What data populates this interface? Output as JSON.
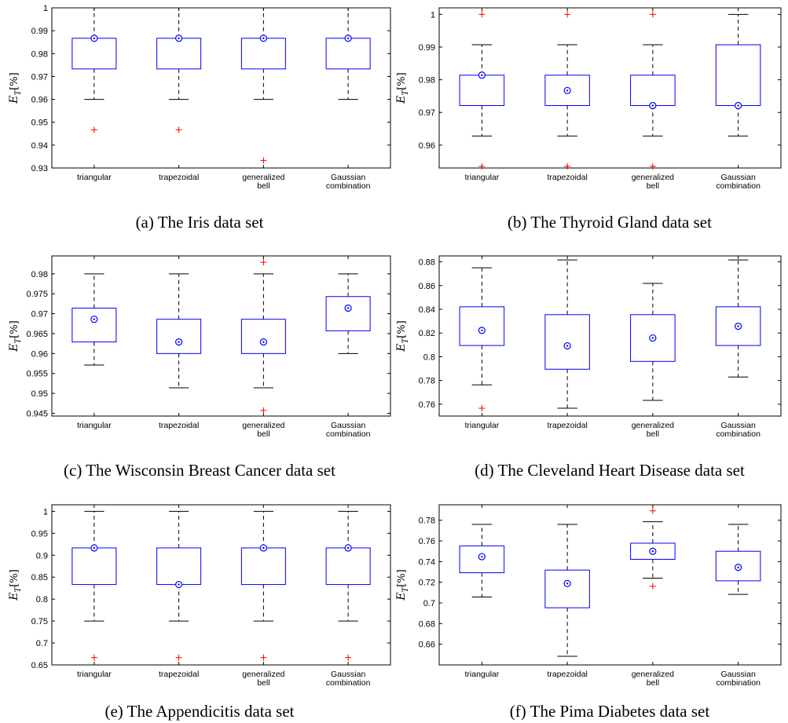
{
  "colors": {
    "box": "#0000ff",
    "median": "#0000ff",
    "outlier": "#ff0000",
    "whisker": "#000000",
    "axis": "#000000"
  },
  "y_label": {
    "main": "E",
    "sub": "T",
    "unit": "[%]"
  },
  "chart_data": [
    {
      "type": "box",
      "caption": "(a) The Iris data set",
      "categories": [
        [
          "triangular"
        ],
        [
          "trapezoidal"
        ],
        [
          "generalized",
          "bell"
        ],
        [
          "Gaussian",
          "combination"
        ]
      ],
      "ylim": [
        0.93,
        1.0
      ],
      "yticks": [
        0.93,
        0.94,
        0.95,
        0.96,
        0.97,
        0.98,
        0.99,
        1
      ],
      "ytick_labels": [
        "0.93",
        "0.94",
        "0.95",
        "0.96",
        "0.97",
        "0.98",
        "0.99",
        "1"
      ],
      "boxes": [
        {
          "q1": 0.9733,
          "median": 0.9867,
          "q3": 0.9867,
          "whisker_low": 0.96,
          "whisker_high": 1.0,
          "outliers": [
            0.9467
          ]
        },
        {
          "q1": 0.9733,
          "median": 0.9867,
          "q3": 0.9867,
          "whisker_low": 0.96,
          "whisker_high": 1.0,
          "outliers": [
            0.9467
          ]
        },
        {
          "q1": 0.9733,
          "median": 0.9867,
          "q3": 0.9867,
          "whisker_low": 0.96,
          "whisker_high": 1.0,
          "outliers": [
            0.9333
          ]
        },
        {
          "q1": 0.9733,
          "median": 0.9867,
          "q3": 0.9867,
          "whisker_low": 0.96,
          "whisker_high": 1.0,
          "outliers": []
        }
      ]
    },
    {
      "type": "box",
      "caption": "(b) The Thyroid Gland data set",
      "categories": [
        [
          "triangular"
        ],
        [
          "trapezoidal"
        ],
        [
          "generalized",
          "bell"
        ],
        [
          "Gaussian",
          "combination"
        ]
      ],
      "ylim": [
        0.953,
        1.002
      ],
      "yticks": [
        0.96,
        0.97,
        0.98,
        0.99,
        1
      ],
      "ytick_labels": [
        "0.96",
        "0.97",
        "0.98",
        "0.99",
        "1"
      ],
      "boxes": [
        {
          "q1": 0.9721,
          "median": 0.9814,
          "q3": 0.9814,
          "whisker_low": 0.9628,
          "whisker_high": 0.9907,
          "outliers": [
            0.9535,
            1.0
          ]
        },
        {
          "q1": 0.9721,
          "median": 0.9767,
          "q3": 0.9814,
          "whisker_low": 0.9628,
          "whisker_high": 0.9907,
          "outliers": [
            0.9535,
            1.0
          ]
        },
        {
          "q1": 0.9721,
          "median": 0.9721,
          "q3": 0.9814,
          "whisker_low": 0.9628,
          "whisker_high": 0.9907,
          "outliers": [
            0.9535,
            1.0
          ]
        },
        {
          "q1": 0.9721,
          "median": 0.9721,
          "q3": 0.9907,
          "whisker_low": 0.9628,
          "whisker_high": 1.0,
          "outliers": []
        }
      ]
    },
    {
      "type": "box",
      "caption": "(c) The Wisconsin Breast Cancer data set",
      "categories": [
        [
          "triangular"
        ],
        [
          "trapezoidal"
        ],
        [
          "generalized",
          "bell"
        ],
        [
          "Gaussian",
          "combination"
        ]
      ],
      "ylim": [
        0.9443,
        0.9845
      ],
      "yticks": [
        0.945,
        0.95,
        0.955,
        0.96,
        0.965,
        0.97,
        0.975,
        0.98
      ],
      "ytick_labels": [
        "0.945",
        "0.95",
        "0.955",
        "0.96",
        "0.965",
        "0.97",
        "0.975",
        "0.98"
      ],
      "boxes": [
        {
          "q1": 0.9629,
          "median": 0.9686,
          "q3": 0.9714,
          "whisker_low": 0.9571,
          "whisker_high": 0.98,
          "outliers": []
        },
        {
          "q1": 0.96,
          "median": 0.9629,
          "q3": 0.9686,
          "whisker_low": 0.9514,
          "whisker_high": 0.98,
          "outliers": []
        },
        {
          "q1": 0.96,
          "median": 0.9629,
          "q3": 0.9686,
          "whisker_low": 0.9514,
          "whisker_high": 0.98,
          "outliers": [
            0.9457,
            0.9829
          ]
        },
        {
          "q1": 0.9657,
          "median": 0.9714,
          "q3": 0.9743,
          "whisker_low": 0.96,
          "whisker_high": 0.98,
          "outliers": []
        }
      ]
    },
    {
      "type": "box",
      "caption": "(d) The Cleveland Heart Disease data set",
      "categories": [
        [
          "triangular"
        ],
        [
          "trapezoidal"
        ],
        [
          "generalized",
          "bell"
        ],
        [
          "Gaussian",
          "combination"
        ]
      ],
      "ylim": [
        0.75,
        0.885
      ],
      "yticks": [
        0.76,
        0.78,
        0.8,
        0.82,
        0.84,
        0.86,
        0.88
      ],
      "ytick_labels": [
        "0.76",
        "0.78",
        "0.8",
        "0.82",
        "0.84",
        "0.86",
        "0.88"
      ],
      "boxes": [
        {
          "q1": 0.8095,
          "median": 0.8222,
          "q3": 0.8421,
          "whisker_low": 0.7763,
          "whisker_high": 0.875,
          "outliers": [
            0.7566
          ]
        },
        {
          "q1": 0.7895,
          "median": 0.8092,
          "q3": 0.8355,
          "whisker_low": 0.7566,
          "whisker_high": 0.8816,
          "outliers": []
        },
        {
          "q1": 0.7961,
          "median": 0.8158,
          "q3": 0.8355,
          "whisker_low": 0.7632,
          "whisker_high": 0.8618,
          "outliers": []
        },
        {
          "q1": 0.8095,
          "median": 0.8257,
          "q3": 0.8421,
          "whisker_low": 0.7829,
          "whisker_high": 0.8816,
          "outliers": []
        }
      ]
    },
    {
      "type": "box",
      "caption": "(e) The Appendicitis data set",
      "categories": [
        [
          "triangular"
        ],
        [
          "trapezoidal"
        ],
        [
          "generalized",
          "bell"
        ],
        [
          "Gaussian",
          "combination"
        ]
      ],
      "ylim": [
        0.65,
        1.015
      ],
      "yticks": [
        0.65,
        0.7,
        0.75,
        0.8,
        0.85,
        0.9,
        0.95,
        1
      ],
      "ytick_labels": [
        "0.65",
        "0.7",
        "0.75",
        "0.8",
        "0.85",
        "0.9",
        "0.95",
        "1"
      ],
      "boxes": [
        {
          "q1": 0.8333,
          "median": 0.9167,
          "q3": 0.9167,
          "whisker_low": 0.75,
          "whisker_high": 1.0,
          "outliers": [
            0.6667
          ]
        },
        {
          "q1": 0.8333,
          "median": 0.8333,
          "q3": 0.9167,
          "whisker_low": 0.75,
          "whisker_high": 1.0,
          "outliers": [
            0.6667
          ]
        },
        {
          "q1": 0.8333,
          "median": 0.9167,
          "q3": 0.9167,
          "whisker_low": 0.75,
          "whisker_high": 1.0,
          "outliers": [
            0.6667
          ]
        },
        {
          "q1": 0.8333,
          "median": 0.9167,
          "q3": 0.9167,
          "whisker_low": 0.75,
          "whisker_high": 1.0,
          "outliers": [
            0.6667
          ]
        }
      ]
    },
    {
      "type": "box",
      "caption": "(f) The Pima Diabetes data set",
      "categories": [
        [
          "triangular"
        ],
        [
          "trapezoidal"
        ],
        [
          "generalized",
          "bell"
        ],
        [
          "Gaussian",
          "combination"
        ]
      ],
      "ylim": [
        0.64,
        0.795
      ],
      "yticks": [
        0.66,
        0.68,
        0.7,
        0.72,
        0.74,
        0.76,
        0.78
      ],
      "ytick_labels": [
        "0.66",
        "0.68",
        "0.7",
        "0.72",
        "0.74",
        "0.76",
        "0.78"
      ],
      "boxes": [
        {
          "q1": 0.7292,
          "median": 0.7448,
          "q3": 0.7552,
          "whisker_low": 0.7057,
          "whisker_high": 0.776,
          "outliers": []
        },
        {
          "q1": 0.6953,
          "median": 0.7188,
          "q3": 0.7318,
          "whisker_low": 0.6484,
          "whisker_high": 0.776,
          "outliers": []
        },
        {
          "q1": 0.7422,
          "median": 0.75,
          "q3": 0.7578,
          "whisker_low": 0.724,
          "whisker_high": 0.7786,
          "outliers": [
            0.7161,
            0.7891
          ]
        },
        {
          "q1": 0.7214,
          "median": 0.7344,
          "q3": 0.75,
          "whisker_low": 0.7083,
          "whisker_high": 0.776,
          "outliers": []
        }
      ]
    }
  ]
}
